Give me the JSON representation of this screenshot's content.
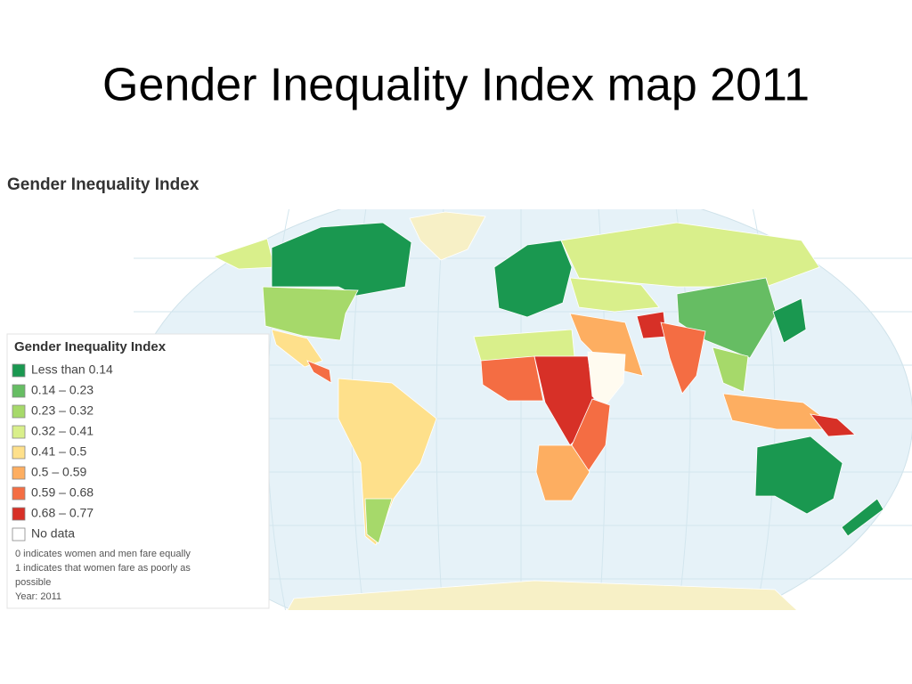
{
  "slide": {
    "title": "Gender Inequality Index map 2011"
  },
  "map": {
    "title": "Gender Inequality Index",
    "legend": {
      "title": "Gender Inequality Index",
      "items": [
        {
          "label": "Less than 0.14",
          "color": "#1a9850"
        },
        {
          "label": "0.14 – 0.23",
          "color": "#66bd63"
        },
        {
          "label": "0.23 – 0.32",
          "color": "#a6d96a"
        },
        {
          "label": "0.32 – 0.41",
          "color": "#d9ef8b"
        },
        {
          "label": "0.41 – 0.5",
          "color": "#fee08b"
        },
        {
          "label": "0.5 – 0.59",
          "color": "#fdae61"
        },
        {
          "label": "0.59 – 0.68",
          "color": "#f46d43"
        },
        {
          "label": "0.68 – 0.77",
          "color": "#d73027"
        },
        {
          "label": "No data",
          "color": "#ffffff"
        }
      ],
      "notes": [
        "0 indicates women and men fare equally",
        "1 indicates that women fare as poorly as",
        "possible",
        "Year: 2011"
      ]
    }
  }
}
